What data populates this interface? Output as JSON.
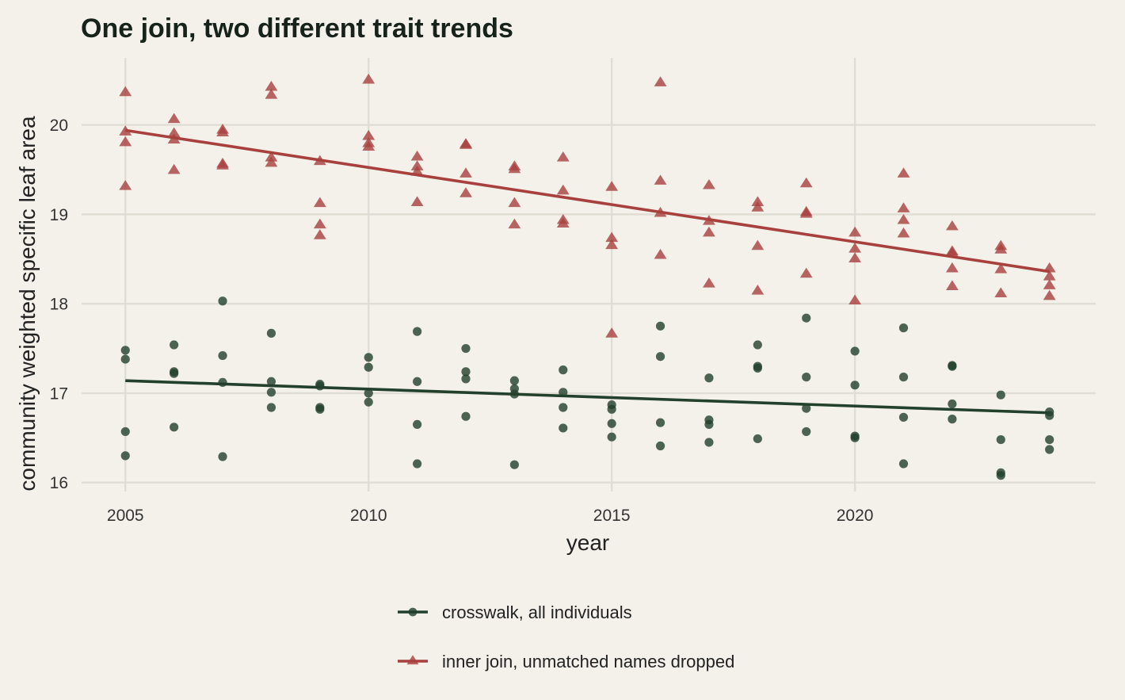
{
  "chart_data": {
    "type": "scatter",
    "title": "One join, two different trait trends",
    "xlabel": "year",
    "ylabel": "community weighted specific leaf area",
    "xlim": [
      2004.1,
      2024.95
    ],
    "ylim": [
      15.9,
      20.75
    ],
    "xticks": [
      2005,
      2010,
      2015,
      2020
    ],
    "xtick_labels": [
      "2005",
      "2010",
      "2015",
      "2020"
    ],
    "yticks": [
      16,
      17,
      18,
      19,
      20
    ],
    "ytick_labels": [
      "16",
      "17",
      "18",
      "19",
      "20"
    ],
    "grid": true,
    "legend_position": "bottom",
    "series": [
      {
        "name": "crosswalk, all individuals",
        "marker": "circle",
        "color": "#22402c",
        "trend": {
          "start": [
            2005,
            17.14
          ],
          "end": [
            2024,
            16.78
          ]
        },
        "points": [
          [
            2005,
            17.48
          ],
          [
            2005,
            17.38
          ],
          [
            2005,
            16.57
          ],
          [
            2005,
            16.3
          ],
          [
            2006,
            17.54
          ],
          [
            2006,
            17.24
          ],
          [
            2006,
            17.22
          ],
          [
            2006,
            16.62
          ],
          [
            2007,
            18.03
          ],
          [
            2007,
            17.42
          ],
          [
            2007,
            17.12
          ],
          [
            2007,
            16.29
          ],
          [
            2008,
            17.67
          ],
          [
            2008,
            17.13
          ],
          [
            2008,
            17.01
          ],
          [
            2008,
            16.84
          ],
          [
            2009,
            17.1
          ],
          [
            2009,
            17.08
          ],
          [
            2009,
            16.84
          ],
          [
            2009,
            16.82
          ],
          [
            2010,
            17.4
          ],
          [
            2010,
            17.29
          ],
          [
            2010,
            17.0
          ],
          [
            2010,
            16.9
          ],
          [
            2011,
            17.69
          ],
          [
            2011,
            17.13
          ],
          [
            2011,
            16.65
          ],
          [
            2011,
            16.21
          ],
          [
            2012,
            17.5
          ],
          [
            2012,
            17.24
          ],
          [
            2012,
            17.16
          ],
          [
            2012,
            16.74
          ],
          [
            2013,
            17.14
          ],
          [
            2013,
            17.05
          ],
          [
            2013,
            16.99
          ],
          [
            2013,
            16.2
          ],
          [
            2014,
            17.26
          ],
          [
            2014,
            17.01
          ],
          [
            2014,
            16.84
          ],
          [
            2014,
            16.61
          ],
          [
            2015,
            16.87
          ],
          [
            2015,
            16.82
          ],
          [
            2015,
            16.66
          ],
          [
            2015,
            16.51
          ],
          [
            2016,
            17.75
          ],
          [
            2016,
            17.41
          ],
          [
            2016,
            16.67
          ],
          [
            2016,
            16.41
          ],
          [
            2017,
            17.17
          ],
          [
            2017,
            16.7
          ],
          [
            2017,
            16.65
          ],
          [
            2017,
            16.45
          ],
          [
            2018,
            17.54
          ],
          [
            2018,
            17.3
          ],
          [
            2018,
            17.28
          ],
          [
            2018,
            16.49
          ],
          [
            2019,
            17.84
          ],
          [
            2019,
            17.18
          ],
          [
            2019,
            16.83
          ],
          [
            2019,
            16.57
          ],
          [
            2020,
            17.47
          ],
          [
            2020,
            17.09
          ],
          [
            2020,
            16.52
          ],
          [
            2020,
            16.5
          ],
          [
            2021,
            17.73
          ],
          [
            2021,
            17.18
          ],
          [
            2021,
            16.73
          ],
          [
            2021,
            16.21
          ],
          [
            2022,
            17.31
          ],
          [
            2022,
            17.3
          ],
          [
            2022,
            16.88
          ],
          [
            2022,
            16.71
          ],
          [
            2023,
            16.98
          ],
          [
            2023,
            16.48
          ],
          [
            2023,
            16.11
          ],
          [
            2023,
            16.08
          ],
          [
            2024,
            16.79
          ],
          [
            2024,
            16.75
          ],
          [
            2024,
            16.48
          ],
          [
            2024,
            16.37
          ]
        ]
      },
      {
        "name": "inner join, unmatched names dropped",
        "marker": "triangle",
        "color": "#a8403e",
        "trend": {
          "start": [
            2005,
            19.94
          ],
          "end": [
            2024,
            18.36
          ]
        },
        "points": [
          [
            2005,
            20.37
          ],
          [
            2005,
            19.93
          ],
          [
            2005,
            19.81
          ],
          [
            2005,
            19.32
          ],
          [
            2006,
            20.07
          ],
          [
            2006,
            19.91
          ],
          [
            2006,
            19.84
          ],
          [
            2006,
            19.5
          ],
          [
            2007,
            19.95
          ],
          [
            2007,
            19.92
          ],
          [
            2007,
            19.57
          ],
          [
            2007,
            19.55
          ],
          [
            2008,
            20.43
          ],
          [
            2008,
            20.34
          ],
          [
            2008,
            19.64
          ],
          [
            2008,
            19.58
          ],
          [
            2009,
            19.6
          ],
          [
            2009,
            19.13
          ],
          [
            2009,
            18.89
          ],
          [
            2009,
            18.77
          ],
          [
            2010,
            20.51
          ],
          [
            2010,
            19.88
          ],
          [
            2010,
            19.8
          ],
          [
            2010,
            19.76
          ],
          [
            2011,
            19.65
          ],
          [
            2011,
            19.54
          ],
          [
            2011,
            19.48
          ],
          [
            2011,
            19.14
          ],
          [
            2012,
            19.79
          ],
          [
            2012,
            19.78
          ],
          [
            2012,
            19.46
          ],
          [
            2012,
            19.24
          ],
          [
            2013,
            19.54
          ],
          [
            2013,
            19.51
          ],
          [
            2013,
            19.13
          ],
          [
            2013,
            18.89
          ],
          [
            2014,
            19.64
          ],
          [
            2014,
            19.27
          ],
          [
            2014,
            18.94
          ],
          [
            2014,
            18.9
          ],
          [
            2015,
            19.31
          ],
          [
            2015,
            18.74
          ],
          [
            2015,
            18.66
          ],
          [
            2015,
            17.67
          ],
          [
            2016,
            20.48
          ],
          [
            2016,
            19.38
          ],
          [
            2016,
            19.02
          ],
          [
            2016,
            18.55
          ],
          [
            2017,
            19.33
          ],
          [
            2017,
            18.93
          ],
          [
            2017,
            18.8
          ],
          [
            2017,
            18.23
          ],
          [
            2018,
            19.14
          ],
          [
            2018,
            19.08
          ],
          [
            2018,
            18.65
          ],
          [
            2018,
            18.15
          ],
          [
            2019,
            19.35
          ],
          [
            2019,
            19.03
          ],
          [
            2019,
            19.01
          ],
          [
            2019,
            18.34
          ],
          [
            2020,
            18.8
          ],
          [
            2020,
            18.62
          ],
          [
            2020,
            18.51
          ],
          [
            2020,
            18.04
          ],
          [
            2021,
            19.46
          ],
          [
            2021,
            19.07
          ],
          [
            2021,
            18.94
          ],
          [
            2021,
            18.79
          ],
          [
            2022,
            18.87
          ],
          [
            2022,
            18.59
          ],
          [
            2022,
            18.57
          ],
          [
            2022,
            18.4
          ],
          [
            2022,
            18.2
          ],
          [
            2023,
            18.65
          ],
          [
            2023,
            18.61
          ],
          [
            2023,
            18.39
          ],
          [
            2023,
            18.12
          ],
          [
            2024,
            18.4
          ],
          [
            2024,
            18.31
          ],
          [
            2024,
            18.21
          ],
          [
            2024,
            18.09
          ]
        ]
      }
    ]
  }
}
